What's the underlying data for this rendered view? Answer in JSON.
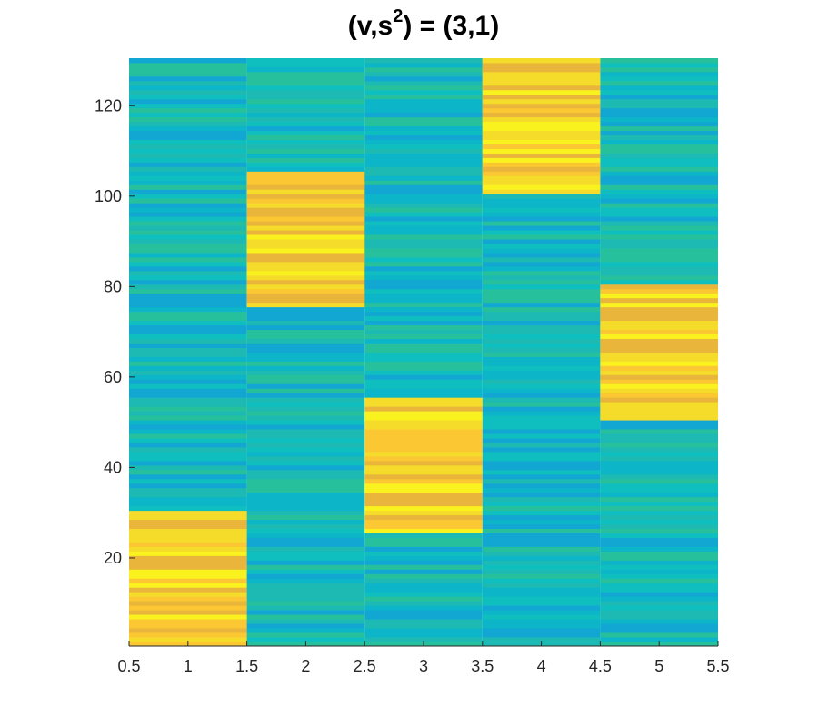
{
  "title": {
    "prefix": "(v,s",
    "sup": "2",
    "suffix": ") = (3,1)"
  },
  "chart_data": {
    "type": "heatmap",
    "title": "(v,s^2) = (3,1)",
    "xlabel": "",
    "ylabel": "",
    "xlim": [
      0.5,
      5.5
    ],
    "ylim": [
      0.5,
      130.5
    ],
    "columns": [
      1,
      2,
      3,
      4,
      5
    ],
    "rows": 130,
    "x_ticks": [
      "0.5",
      "1",
      "1.5",
      "2",
      "2.5",
      "3",
      "3.5",
      "4",
      "4.5",
      "5",
      "5.5"
    ],
    "y_ticks": [
      "20",
      "40",
      "60",
      "80",
      "100",
      "120"
    ],
    "high_blocks": [
      {
        "column": 1,
        "row_start": 1,
        "row_end": 30
      },
      {
        "column": 2,
        "row_start": 76,
        "row_end": 105
      },
      {
        "column": 3,
        "row_start": 26,
        "row_end": 55
      },
      {
        "column": 4,
        "row_start": 101,
        "row_end": 130
      },
      {
        "column": 5,
        "row_start": 51,
        "row_end": 80
      }
    ],
    "colormap": "parula",
    "high_colors": [
      "#f9f21f",
      "#f5dc2a",
      "#fbc733",
      "#e9b53a"
    ],
    "low_colors": [
      "#0cb5c7",
      "#1cbab3",
      "#12a7d2",
      "#27c09d",
      "#0fbfc0"
    ],
    "grid": false,
    "legend": "none"
  }
}
